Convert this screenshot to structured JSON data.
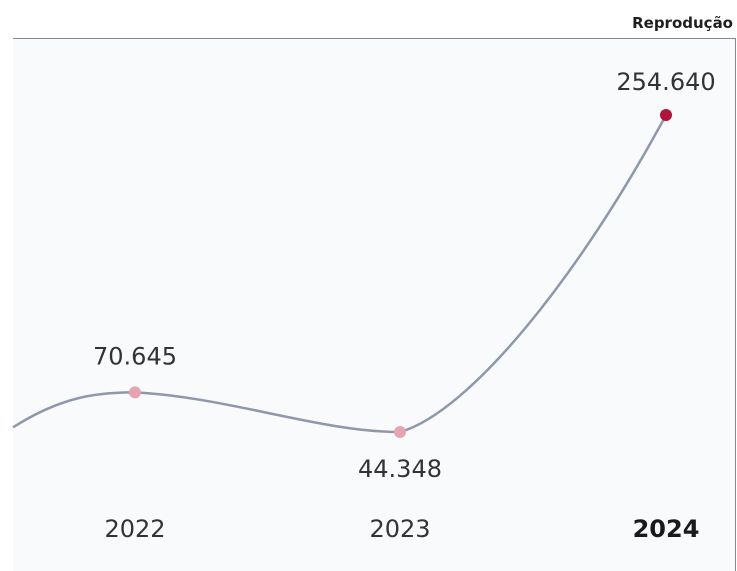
{
  "credit": "Reprodução",
  "colors": {
    "line": "#8e97ab",
    "point": "#e8a3b1",
    "point_highlight": "#b0123a"
  },
  "chart_data": {
    "type": "line",
    "categories": [
      "2022",
      "2023",
      "2024"
    ],
    "values": [
      70645,
      44348,
      254640
    ],
    "value_labels": [
      "70.645",
      "44.348",
      "254.640"
    ],
    "highlight_category": "2024",
    "grid": false,
    "legend": "none"
  }
}
